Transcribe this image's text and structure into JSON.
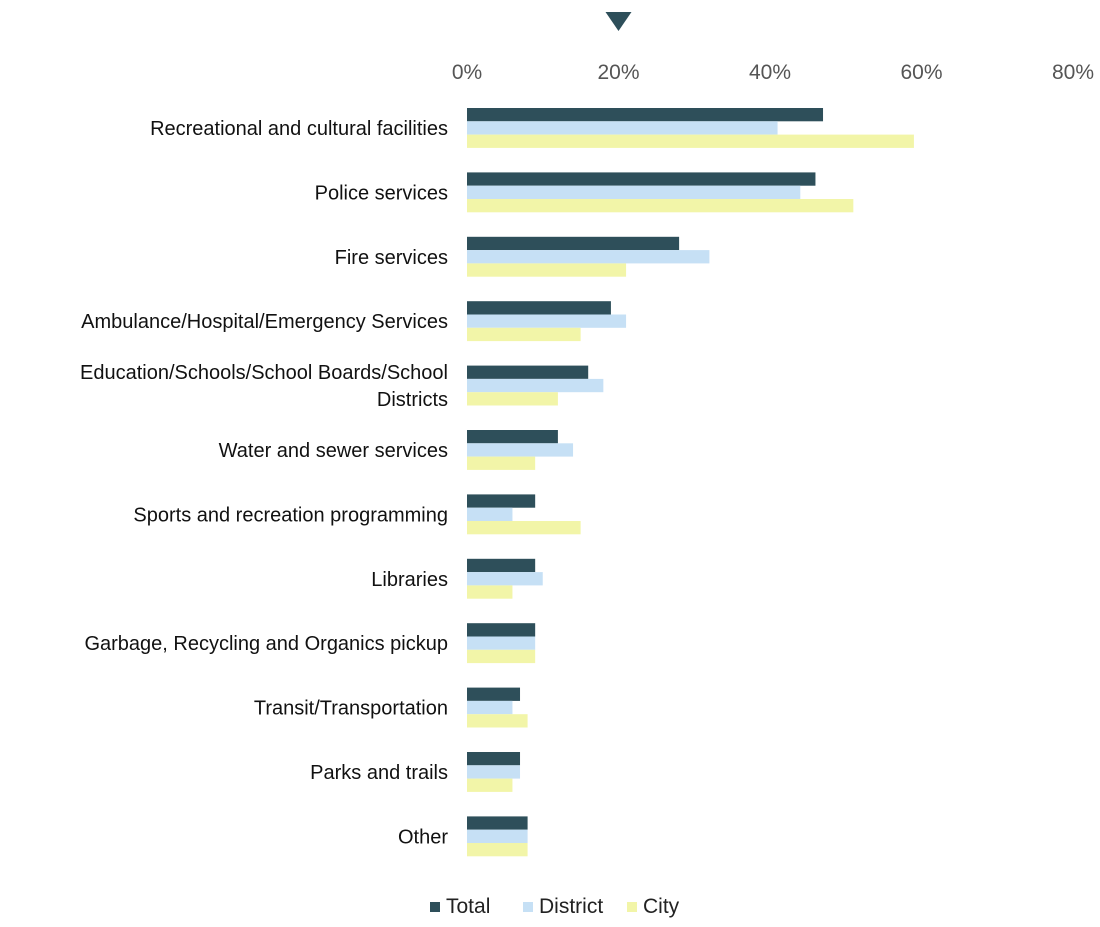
{
  "chart_data": {
    "type": "bar",
    "orientation": "horizontal",
    "x_ticks": [
      "0%",
      "20%",
      "40%",
      "60%",
      "80%"
    ],
    "xlim": [
      0,
      80
    ],
    "x_axis_position": "top",
    "grid": false,
    "legend_position": "bottom",
    "categories": [
      [
        "Recreational and cultural facilities"
      ],
      [
        "Police services"
      ],
      [
        "Fire services"
      ],
      [
        "Ambulance/Hospital/Emergency Services"
      ],
      [
        "Education/Schools/School Boards/School",
        "Districts"
      ],
      [
        "Water and sewer services"
      ],
      [
        "Sports and recreation programming"
      ],
      [
        "Libraries"
      ],
      [
        "Garbage, Recycling and Organics pickup"
      ],
      [
        "Transit/Transportation"
      ],
      [
        "Parks and trails"
      ],
      [
        "Other"
      ]
    ],
    "series": [
      {
        "name": "Total",
        "color": "#2e4f5a",
        "values": [
          47,
          46,
          28,
          19,
          16,
          12,
          9,
          9,
          9,
          7,
          7,
          8
        ]
      },
      {
        "name": "District",
        "color": "#c6e0f5",
        "values": [
          41,
          44,
          32,
          21,
          18,
          14,
          6,
          10,
          9,
          6,
          7,
          8
        ]
      },
      {
        "name": "City",
        "color": "#f2f5a8",
        "values": [
          59,
          51,
          21,
          15,
          12,
          9,
          15,
          6,
          9,
          8,
          6,
          8
        ]
      }
    ],
    "marker": {
      "shape": "down-triangle",
      "at_value": 20,
      "color": "#2e4f5a"
    }
  }
}
